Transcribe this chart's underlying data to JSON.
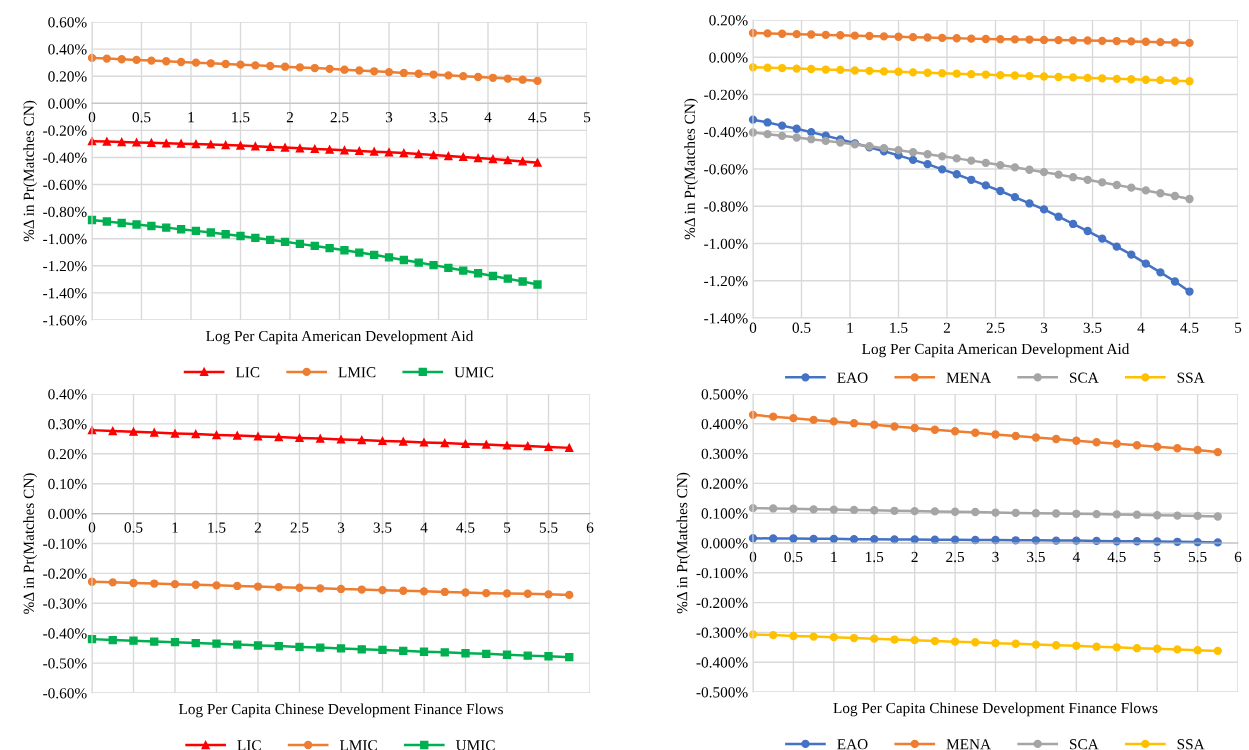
{
  "chart_data": [
    {
      "type": "line",
      "xlabel": "Log Per Capita American Development Aid",
      "ylabel": "%Δ in Pr(Matches CN)",
      "x": [
        0,
        0.15,
        0.3,
        0.45,
        0.6,
        0.75,
        0.9,
        1.05,
        1.2,
        1.35,
        1.5,
        1.65,
        1.8,
        1.95,
        2.1,
        2.25,
        2.4,
        2.55,
        2.7,
        2.85,
        3,
        3.15,
        3.3,
        3.45,
        3.6,
        3.75,
        3.9,
        4.05,
        4.2,
        4.35,
        4.5
      ],
      "series": [
        {
          "name": "LIC",
          "color": "#ff0000",
          "marker": "triangle",
          "values": [
            -0.28,
            -0.283,
            -0.286,
            -0.289,
            -0.292,
            -0.295,
            -0.298,
            -0.301,
            -0.304,
            -0.308,
            -0.312,
            -0.317,
            -0.322,
            -0.327,
            -0.332,
            -0.337,
            -0.342,
            -0.347,
            -0.352,
            -0.357,
            -0.362,
            -0.368,
            -0.375,
            -0.382,
            -0.389,
            -0.396,
            -0.404,
            -0.412,
            -0.42,
            -0.429,
            -0.438
          ]
        },
        {
          "name": "LMIC",
          "color": "#ed7d31",
          "marker": "circle",
          "values": [
            0.335,
            0.33,
            0.325,
            0.32,
            0.315,
            0.31,
            0.305,
            0.3,
            0.295,
            0.29,
            0.285,
            0.28,
            0.275,
            0.27,
            0.265,
            0.26,
            0.254,
            0.248,
            0.242,
            0.236,
            0.23,
            0.224,
            0.218,
            0.212,
            0.206,
            0.2,
            0.194,
            0.188,
            0.182,
            0.174,
            0.165
          ]
        },
        {
          "name": "UMIC",
          "color": "#00b050",
          "marker": "square",
          "values": [
            -0.862,
            -0.873,
            -0.884,
            -0.895,
            -0.906,
            -0.918,
            -0.93,
            -0.942,
            -0.954,
            -0.967,
            -0.98,
            -0.994,
            -1.008,
            -1.023,
            -1.038,
            -1.053,
            -1.069,
            -1.085,
            -1.102,
            -1.119,
            -1.138,
            -1.157,
            -1.176,
            -1.195,
            -1.215,
            -1.235,
            -1.255,
            -1.275,
            -1.295,
            -1.316,
            -1.338
          ]
        }
      ],
      "xlim": [
        0,
        5
      ],
      "xticks": [
        0,
        0.5,
        1,
        1.5,
        2,
        2.5,
        3,
        3.5,
        4,
        4.5,
        5
      ],
      "ylim": [
        -1.6,
        0.6
      ],
      "yticks": [
        {
          "value": -1.6,
          "label": "-1.60%"
        },
        {
          "value": -1.4,
          "label": "-1.40%"
        },
        {
          "value": -1.2,
          "label": "-1.20%"
        },
        {
          "value": -1.0,
          "label": "-1.00%"
        },
        {
          "value": -0.8,
          "label": "-0.80%"
        },
        {
          "value": -0.6,
          "label": "-0.60%"
        },
        {
          "value": -0.4,
          "label": "-0.40%"
        },
        {
          "value": -0.2,
          "label": "-0.20%"
        },
        {
          "value": 0,
          "label": "0.00%"
        },
        {
          "value": 0.2,
          "label": "0.20%"
        },
        {
          "value": 0.4,
          "label": "0.40%"
        },
        {
          "value": 0.6,
          "label": "0.60%"
        }
      ],
      "grid": true,
      "legend": "bottom",
      "line_style": "solid"
    },
    {
      "type": "line",
      "xlabel": "Log Per Capita American Development Aid",
      "ylabel": "%Δ in Pr(Matches CN)",
      "x": [
        0,
        0.15,
        0.3,
        0.45,
        0.6,
        0.75,
        0.9,
        1.05,
        1.2,
        1.35,
        1.5,
        1.65,
        1.8,
        1.95,
        2.1,
        2.25,
        2.4,
        2.55,
        2.7,
        2.85,
        3,
        3.15,
        3.3,
        3.45,
        3.6,
        3.75,
        3.9,
        4.05,
        4.2,
        4.35,
        4.5
      ],
      "series": [
        {
          "name": "EAO",
          "color": "#4472c4",
          "marker": "circle",
          "values": [
            -0.335,
            -0.35,
            -0.367,
            -0.384,
            -0.402,
            -0.421,
            -0.441,
            -0.462,
            -0.483,
            -0.505,
            -0.527,
            -0.551,
            -0.574,
            -0.602,
            -0.628,
            -0.658,
            -0.688,
            -0.718,
            -0.751,
            -0.785,
            -0.817,
            -0.856,
            -0.895,
            -0.933,
            -0.974,
            -1.017,
            -1.06,
            -1.108,
            -1.155,
            -1.204,
            -1.258
          ]
        },
        {
          "name": "MENA",
          "color": "#ed7d31",
          "marker": "circle",
          "values": [
            0.13,
            0.128,
            0.126,
            0.124,
            0.122,
            0.12,
            0.118,
            0.116,
            0.114,
            0.112,
            0.11,
            0.108,
            0.106,
            0.104,
            0.102,
            0.1,
            0.098,
            0.097,
            0.096,
            0.095,
            0.093,
            0.092,
            0.091,
            0.09,
            0.088,
            0.087,
            0.085,
            0.083,
            0.081,
            0.079,
            0.077
          ]
        },
        {
          "name": "SCA",
          "color": "#a5a5a5",
          "marker": "circle",
          "values": [
            -0.404,
            -0.413,
            -0.422,
            -0.431,
            -0.44,
            -0.449,
            -0.458,
            -0.468,
            -0.478,
            -0.488,
            -0.499,
            -0.51,
            -0.521,
            -0.532,
            -0.543,
            -0.555,
            -0.567,
            -0.579,
            -0.591,
            -0.604,
            -0.617,
            -0.63,
            -0.644,
            -0.658,
            -0.672,
            -0.686,
            -0.7,
            -0.715,
            -0.73,
            -0.745,
            -0.761
          ]
        },
        {
          "name": "SSA",
          "color": "#ffc000",
          "marker": "circle",
          "values": [
            -0.054,
            -0.056,
            -0.058,
            -0.061,
            -0.063,
            -0.066,
            -0.068,
            -0.071,
            -0.073,
            -0.076,
            -0.078,
            -0.081,
            -0.083,
            -0.086,
            -0.088,
            -0.091,
            -0.093,
            -0.096,
            -0.098,
            -0.101,
            -0.103,
            -0.106,
            -0.108,
            -0.111,
            -0.113,
            -0.116,
            -0.118,
            -0.121,
            -0.123,
            -0.126,
            -0.129
          ]
        }
      ],
      "xlim": [
        0,
        5
      ],
      "xticks": [
        0,
        0.5,
        1,
        1.5,
        2,
        2.5,
        3,
        3.5,
        4,
        4.5,
        5
      ],
      "ylim": [
        -1.4,
        0.2
      ],
      "yticks": [
        {
          "value": -1.4,
          "label": "-1.40%"
        },
        {
          "value": -1.2,
          "label": "-1.20%"
        },
        {
          "value": -1.0,
          "label": "-1.00%"
        },
        {
          "value": -0.8,
          "label": "-0.80%"
        },
        {
          "value": -0.6,
          "label": "-0.60%"
        },
        {
          "value": -0.4,
          "label": "-0.40%"
        },
        {
          "value": -0.2,
          "label": "-0.20%"
        },
        {
          "value": 0,
          "label": "0.00%"
        },
        {
          "value": 0.2,
          "label": "0.20%"
        }
      ],
      "grid": true,
      "legend": "bottom",
      "line_style": "solid"
    },
    {
      "type": "line",
      "xlabel": "Log Per Capita Chinese Development Finance Flows",
      "ylabel": "%Δ in Pr(Matches CN)",
      "x": [
        0,
        0.25,
        0.5,
        0.75,
        1,
        1.25,
        1.5,
        1.75,
        2,
        2.25,
        2.5,
        2.75,
        3,
        3.25,
        3.5,
        3.75,
        4,
        4.25,
        4.5,
        4.75,
        5,
        5.25,
        5.5,
        5.75
      ],
      "series": [
        {
          "name": "LIC",
          "color": "#ff0000",
          "marker": "triangle",
          "values": [
            0.279,
            0.276,
            0.274,
            0.271,
            0.268,
            0.266,
            0.263,
            0.261,
            0.258,
            0.256,
            0.253,
            0.251,
            0.248,
            0.246,
            0.243,
            0.241,
            0.238,
            0.236,
            0.233,
            0.231,
            0.228,
            0.226,
            0.223,
            0.22
          ]
        },
        {
          "name": "LMIC",
          "color": "#ed7d31",
          "marker": "circle",
          "values": [
            -0.228,
            -0.23,
            -0.232,
            -0.234,
            -0.236,
            -0.238,
            -0.24,
            -0.242,
            -0.244,
            -0.246,
            -0.248,
            -0.25,
            -0.252,
            -0.254,
            -0.256,
            -0.258,
            -0.26,
            -0.262,
            -0.264,
            -0.266,
            -0.267,
            -0.268,
            -0.27,
            -0.272
          ]
        },
        {
          "name": "UMIC",
          "color": "#00b050",
          "marker": "square",
          "values": [
            -0.42,
            -0.423,
            -0.425,
            -0.428,
            -0.43,
            -0.433,
            -0.435,
            -0.438,
            -0.441,
            -0.443,
            -0.446,
            -0.448,
            -0.451,
            -0.454,
            -0.456,
            -0.459,
            -0.462,
            -0.464,
            -0.467,
            -0.469,
            -0.472,
            -0.475,
            -0.477,
            -0.48
          ]
        }
      ],
      "xlim": [
        0,
        6
      ],
      "xticks": [
        0,
        0.5,
        1,
        1.5,
        2,
        2.5,
        3,
        3.5,
        4,
        4.5,
        5,
        5.5,
        6
      ],
      "ylim": [
        -0.6,
        0.4
      ],
      "yticks": [
        {
          "value": -0.6,
          "label": "-0.60%"
        },
        {
          "value": -0.5,
          "label": "-0.50%"
        },
        {
          "value": -0.4,
          "label": "-0.40%"
        },
        {
          "value": -0.3,
          "label": "-0.30%"
        },
        {
          "value": -0.2,
          "label": "-0.20%"
        },
        {
          "value": -0.1,
          "label": "-0.10%"
        },
        {
          "value": 0,
          "label": "0.00%"
        },
        {
          "value": 0.1,
          "label": "0.10%"
        },
        {
          "value": 0.2,
          "label": "0.20%"
        },
        {
          "value": 0.3,
          "label": "0.30%"
        },
        {
          "value": 0.4,
          "label": "0.40%"
        }
      ],
      "grid": true,
      "legend": "bottom",
      "line_style": "solid"
    },
    {
      "type": "line",
      "xlabel": "Log Per Capita Chinese Development Finance Flows",
      "ylabel": "%Δ in Pr(Matches CN)",
      "x": [
        0,
        0.25,
        0.5,
        0.75,
        1,
        1.25,
        1.5,
        1.75,
        2,
        2.25,
        2.5,
        2.75,
        3,
        3.25,
        3.5,
        3.75,
        4,
        4.25,
        4.5,
        4.75,
        5,
        5.25,
        5.5,
        5.75
      ],
      "series": [
        {
          "name": "EAO",
          "color": "#4472c4",
          "marker": "circle",
          "values": [
            0.016,
            0.015,
            0.015,
            0.014,
            0.014,
            0.013,
            0.013,
            0.012,
            0.012,
            0.011,
            0.011,
            0.01,
            0.01,
            0.009,
            0.009,
            0.008,
            0.008,
            0.007,
            0.006,
            0.006,
            0.005,
            0.004,
            0.003,
            0.002
          ]
        },
        {
          "name": "MENA",
          "color": "#ed7d31",
          "marker": "circle",
          "values": [
            0.43,
            0.424,
            0.419,
            0.413,
            0.408,
            0.402,
            0.397,
            0.391,
            0.386,
            0.38,
            0.375,
            0.37,
            0.364,
            0.359,
            0.354,
            0.349,
            0.343,
            0.338,
            0.333,
            0.328,
            0.323,
            0.318,
            0.312,
            0.305
          ]
        },
        {
          "name": "SCA",
          "color": "#a5a5a5",
          "marker": "circle",
          "values": [
            0.117,
            0.116,
            0.115,
            0.113,
            0.112,
            0.111,
            0.11,
            0.108,
            0.107,
            0.106,
            0.105,
            0.104,
            0.102,
            0.101,
            0.1,
            0.099,
            0.098,
            0.097,
            0.096,
            0.095,
            0.093,
            0.092,
            0.091,
            0.089
          ]
        },
        {
          "name": "SSA",
          "color": "#ffc000",
          "marker": "circle",
          "values": [
            -0.307,
            -0.309,
            -0.312,
            -0.314,
            -0.316,
            -0.319,
            -0.321,
            -0.324,
            -0.326,
            -0.329,
            -0.331,
            -0.333,
            -0.336,
            -0.338,
            -0.341,
            -0.343,
            -0.345,
            -0.348,
            -0.35,
            -0.353,
            -0.355,
            -0.357,
            -0.36,
            -0.362
          ]
        }
      ],
      "xlim": [
        0,
        6
      ],
      "xticks": [
        0,
        0.5,
        1,
        1.5,
        2,
        2.5,
        3,
        3.5,
        4,
        4.5,
        5,
        5.5,
        6
      ],
      "ylim": [
        -0.5,
        0.5
      ],
      "yticks": [
        {
          "value": -0.5,
          "label": "-0.500%"
        },
        {
          "value": -0.4,
          "label": "-0.400%"
        },
        {
          "value": -0.3,
          "label": "-0.300%"
        },
        {
          "value": -0.2,
          "label": "-0.200%"
        },
        {
          "value": -0.1,
          "label": "-0.100%"
        },
        {
          "value": 0,
          "label": "0.000%"
        },
        {
          "value": 0.1,
          "label": "0.100%"
        },
        {
          "value": 0.2,
          "label": "0.200%"
        },
        {
          "value": 0.3,
          "label": "0.300%"
        },
        {
          "value": 0.4,
          "label": "0.400%"
        },
        {
          "value": 0.5,
          "label": "0.500%"
        }
      ],
      "grid": true,
      "legend": "bottom",
      "line_style": "solid"
    }
  ]
}
